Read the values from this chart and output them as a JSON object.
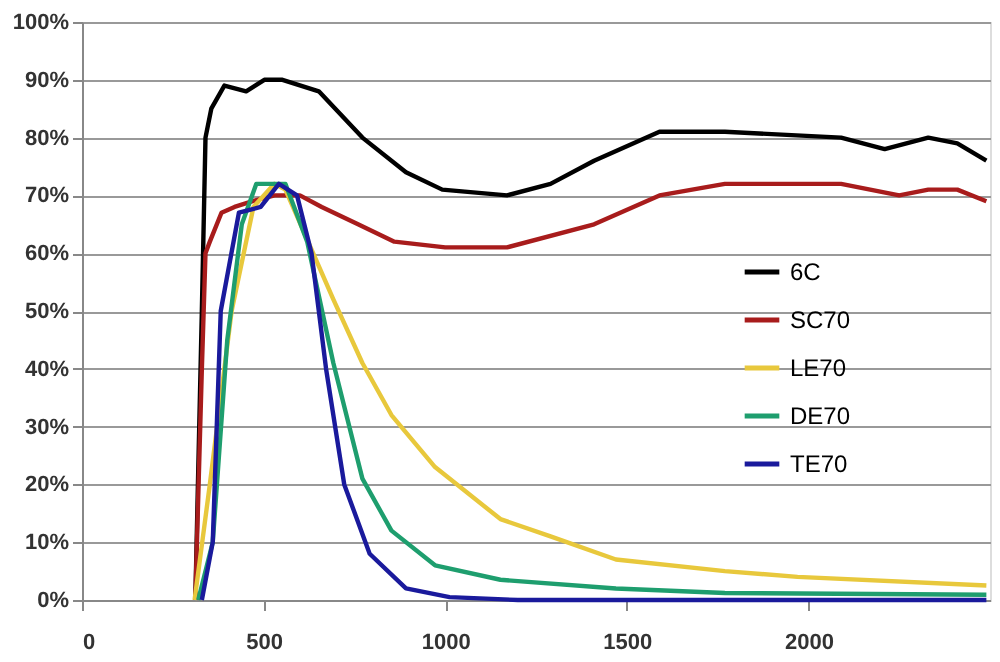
{
  "chart_data": {
    "type": "line",
    "xlim": [
      0,
      2500
    ],
    "xticks": [
      0,
      500,
      1000,
      1500,
      2000
    ],
    "ylim": [
      0,
      100
    ],
    "yticks": [
      {
        "value": 0,
        "label": "0%"
      },
      {
        "value": 10,
        "label": "10%"
      },
      {
        "value": 20,
        "label": "20%"
      },
      {
        "value": 30,
        "label": "30%"
      },
      {
        "value": 40,
        "label": "40%"
      },
      {
        "value": 50,
        "label": "50%"
      },
      {
        "value": 60,
        "label": "60%"
      },
      {
        "value": 70,
        "label": "70%"
      },
      {
        "value": 80,
        "label": "80%"
      },
      {
        "value": 90,
        "label": "90%"
      },
      {
        "value": 100,
        "label": "100%"
      }
    ],
    "grid": "y",
    "legend": "right",
    "marker": "none",
    "line_style": "solid",
    "series": [
      {
        "name": "6C",
        "color": "#000000",
        "x": [
          312,
          330,
          340,
          356,
          392,
          452,
          502,
          552,
          652,
          772,
          892,
          992,
          1170,
          1290,
          1410,
          1590,
          1770,
          2090,
          2150,
          2210,
          2330,
          2410,
          2490
        ],
        "values": [
          0,
          50,
          80,
          85,
          89,
          88,
          90,
          90,
          88,
          80,
          74,
          71,
          70,
          72,
          76,
          81,
          81,
          80,
          79,
          78,
          80,
          79,
          76
        ]
      },
      {
        "name": "SC70",
        "color": "#a81c1c",
        "x": [
          312,
          330,
          340,
          352,
          384,
          420,
          470,
          530,
          600,
          660,
          760,
          860,
          1000,
          1170,
          1410,
          1590,
          1770,
          2090,
          2250,
          2330,
          2410,
          2490
        ],
        "values": [
          0,
          40,
          60,
          62,
          67,
          68,
          69,
          70,
          70,
          68,
          65,
          62,
          61,
          61,
          65,
          70,
          72,
          72,
          70,
          71,
          71,
          69
        ]
      },
      {
        "name": "LE70",
        "color": "#e8c83c",
        "x": [
          310,
          352,
          412,
          472,
          530,
          560,
          692,
          772,
          852,
          972,
          1152,
          1290,
          1470,
          1770,
          1970,
          2490
        ],
        "values": [
          0,
          20,
          50,
          68,
          72,
          71,
          52,
          41,
          32,
          23,
          14,
          11,
          7,
          5,
          4,
          2.5
        ]
      },
      {
        "name": "DE70",
        "color": "#1e9e6e",
        "x": [
          320,
          360,
          400,
          440,
          480,
          560,
          620,
          692,
          772,
          852,
          972,
          1152,
          1470,
          1770,
          2490
        ],
        "values": [
          0,
          10,
          45,
          65,
          72,
          72,
          62,
          41,
          21,
          12,
          6,
          3.5,
          2,
          1.2,
          0.9
        ]
      },
      {
        "name": "TE70",
        "color": "#1a1a9c",
        "x": [
          330,
          360,
          382,
          432,
          492,
          542,
          592,
          632,
          672,
          722,
          792,
          892,
          1012,
          1200,
          2490
        ],
        "values": [
          0,
          10,
          50,
          67,
          68,
          72,
          70,
          60,
          40,
          20,
          8,
          2,
          0.5,
          0,
          0
        ]
      }
    ]
  }
}
